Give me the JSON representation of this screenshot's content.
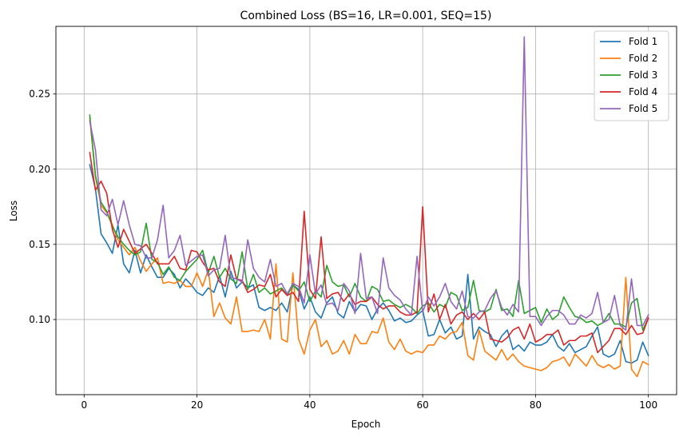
{
  "chart_data": {
    "type": "line",
    "title": "Combined Loss (BS=16, LR=0.001, SEQ=15)",
    "xlabel": "Epoch",
    "ylabel": "Loss",
    "xlim": [
      -5,
      105
    ],
    "ylim": [
      0.05,
      0.295
    ],
    "xticks": [
      0,
      20,
      40,
      60,
      80,
      100
    ],
    "yticks": [
      0.1,
      0.15,
      0.2,
      0.25
    ],
    "ytick_labels": [
      "0.10",
      "0.15",
      "0.20",
      "0.25"
    ],
    "grid": true,
    "legend_position": "top-right",
    "series": [
      {
        "name": "Fold 1",
        "color": "#1f77b4",
        "values": [
          0.203,
          0.187,
          0.157,
          0.151,
          0.144,
          0.163,
          0.137,
          0.131,
          0.146,
          0.131,
          0.143,
          0.135,
          0.128,
          0.128,
          0.134,
          0.13,
          0.121,
          0.127,
          0.123,
          0.118,
          0.116,
          0.121,
          0.118,
          0.129,
          0.115,
          0.132,
          0.121,
          0.125,
          0.121,
          0.123,
          0.108,
          0.106,
          0.108,
          0.106,
          0.111,
          0.105,
          0.123,
          0.12,
          0.107,
          0.115,
          0.105,
          0.101,
          0.111,
          0.115,
          0.104,
          0.101,
          0.112,
          0.105,
          0.11,
          0.109,
          0.1,
          0.107,
          0.111,
          0.106,
          0.099,
          0.101,
          0.098,
          0.099,
          0.103,
          0.106,
          0.089,
          0.09,
          0.1,
          0.091,
          0.095,
          0.087,
          0.089,
          0.13,
          0.087,
          0.095,
          0.092,
          0.09,
          0.082,
          0.089,
          0.093,
          0.08,
          0.083,
          0.079,
          0.085,
          0.083,
          0.083,
          0.085,
          0.09,
          0.082,
          0.079,
          0.084,
          0.078,
          0.08,
          0.082,
          0.089,
          0.095,
          0.077,
          0.075,
          0.077,
          0.086,
          0.072,
          0.071,
          0.073,
          0.085,
          0.076
        ]
      },
      {
        "name": "Fold 2",
        "color": "#ff7f0e",
        "values": [
          0.234,
          0.195,
          0.176,
          0.171,
          0.163,
          0.153,
          0.148,
          0.143,
          0.148,
          0.139,
          0.132,
          0.137,
          0.141,
          0.124,
          0.125,
          0.124,
          0.126,
          0.122,
          0.122,
          0.131,
          0.122,
          0.133,
          0.102,
          0.111,
          0.101,
          0.097,
          0.115,
          0.092,
          0.092,
          0.093,
          0.092,
          0.1,
          0.087,
          0.137,
          0.087,
          0.085,
          0.131,
          0.087,
          0.077,
          0.093,
          0.1,
          0.082,
          0.086,
          0.077,
          0.079,
          0.086,
          0.077,
          0.09,
          0.084,
          0.084,
          0.092,
          0.091,
          0.101,
          0.085,
          0.08,
          0.087,
          0.079,
          0.077,
          0.079,
          0.078,
          0.083,
          0.083,
          0.089,
          0.087,
          0.091,
          0.092,
          0.098,
          0.076,
          0.073,
          0.093,
          0.079,
          0.076,
          0.073,
          0.08,
          0.073,
          0.077,
          0.072,
          0.069,
          0.068,
          0.067,
          0.066,
          0.068,
          0.072,
          0.073,
          0.075,
          0.069,
          0.077,
          0.073,
          0.069,
          0.076,
          0.07,
          0.068,
          0.07,
          0.067,
          0.069,
          0.128,
          0.067,
          0.062,
          0.072,
          0.07
        ]
      },
      {
        "name": "Fold 3",
        "color": "#2ca02c",
        "values": [
          0.236,
          0.196,
          0.178,
          0.172,
          0.162,
          0.155,
          0.15,
          0.146,
          0.143,
          0.145,
          0.164,
          0.14,
          0.138,
          0.13,
          0.135,
          0.128,
          0.126,
          0.132,
          0.136,
          0.14,
          0.146,
          0.131,
          0.142,
          0.128,
          0.134,
          0.127,
          0.124,
          0.145,
          0.12,
          0.13,
          0.118,
          0.121,
          0.117,
          0.119,
          0.121,
          0.116,
          0.123,
          0.119,
          0.125,
          0.112,
          0.119,
          0.115,
          0.136,
          0.125,
          0.122,
          0.123,
          0.115,
          0.124,
          0.115,
          0.112,
          0.122,
          0.12,
          0.112,
          0.113,
          0.11,
          0.108,
          0.11,
          0.108,
          0.104,
          0.109,
          0.111,
          0.105,
          0.11,
          0.108,
          0.118,
          0.116,
          0.106,
          0.108,
          0.126,
          0.106,
          0.105,
          0.107,
          0.12,
          0.106,
          0.107,
          0.102,
          0.126,
          0.104,
          0.106,
          0.108,
          0.098,
          0.107,
          0.1,
          0.103,
          0.115,
          0.108,
          0.102,
          0.101,
          0.098,
          0.099,
          0.096,
          0.098,
          0.104,
          0.097,
          0.097,
          0.095,
          0.111,
          0.114,
          0.093,
          0.101
        ]
      },
      {
        "name": "Fold 4",
        "color": "#d62728",
        "values": [
          0.211,
          0.186,
          0.192,
          0.184,
          0.16,
          0.148,
          0.16,
          0.152,
          0.144,
          0.147,
          0.15,
          0.144,
          0.137,
          0.137,
          0.137,
          0.142,
          0.134,
          0.133,
          0.146,
          0.145,
          0.138,
          0.133,
          0.134,
          0.125,
          0.122,
          0.143,
          0.127,
          0.126,
          0.118,
          0.12,
          0.123,
          0.122,
          0.13,
          0.115,
          0.12,
          0.116,
          0.118,
          0.112,
          0.172,
          0.12,
          0.114,
          0.155,
          0.114,
          0.117,
          0.118,
          0.112,
          0.117,
          0.11,
          0.112,
          0.112,
          0.115,
          0.11,
          0.107,
          0.109,
          0.109,
          0.105,
          0.103,
          0.103,
          0.105,
          0.175,
          0.105,
          0.117,
          0.1,
          0.11,
          0.097,
          0.103,
          0.105,
          0.1,
          0.104,
          0.1,
          0.105,
          0.087,
          0.086,
          0.085,
          0.088,
          0.093,
          0.095,
          0.087,
          0.097,
          0.085,
          0.087,
          0.09,
          0.09,
          0.093,
          0.083,
          0.086,
          0.086,
          0.089,
          0.089,
          0.091,
          0.078,
          0.082,
          0.086,
          0.094,
          0.094,
          0.09,
          0.096,
          0.09,
          0.091,
          0.101
        ]
      },
      {
        "name": "Fold 5",
        "color": "#9467bd",
        "values": [
          0.232,
          0.213,
          0.173,
          0.169,
          0.18,
          0.163,
          0.179,
          0.163,
          0.15,
          0.149,
          0.141,
          0.141,
          0.153,
          0.176,
          0.141,
          0.146,
          0.156,
          0.136,
          0.139,
          0.142,
          0.143,
          0.129,
          0.133,
          0.134,
          0.156,
          0.128,
          0.127,
          0.125,
          0.153,
          0.134,
          0.128,
          0.125,
          0.14,
          0.122,
          0.124,
          0.117,
          0.124,
          0.122,
          0.111,
          0.143,
          0.117,
          0.123,
          0.11,
          0.111,
          0.106,
          0.124,
          0.119,
          0.104,
          0.144,
          0.114,
          0.115,
          0.104,
          0.141,
          0.121,
          0.116,
          0.113,
          0.107,
          0.103,
          0.142,
          0.105,
          0.115,
          0.109,
          0.115,
          0.124,
          0.112,
          0.107,
          0.119,
          0.102,
          0.101,
          0.105,
          0.106,
          0.114,
          0.119,
          0.108,
          0.103,
          0.11,
          0.105,
          0.288,
          0.102,
          0.102,
          0.096,
          0.102,
          0.106,
          0.106,
          0.103,
          0.097,
          0.097,
          0.103,
          0.101,
          0.104,
          0.118,
          0.098,
          0.1,
          0.116,
          0.096,
          0.093,
          0.127,
          0.096,
          0.096,
          0.103
        ]
      }
    ]
  }
}
